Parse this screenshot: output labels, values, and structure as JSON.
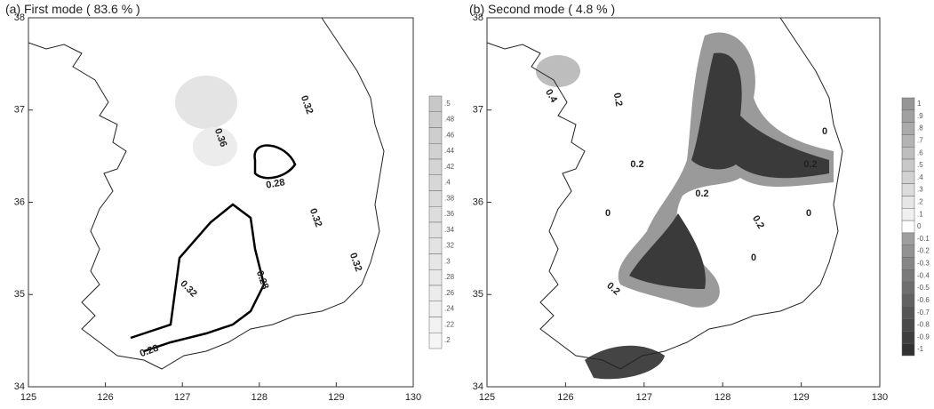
{
  "panels": [
    {
      "title": "(a) First mode ( 83.6 % )",
      "xticks": [
        125,
        126,
        127,
        128,
        129,
        130
      ],
      "yticks": [
        34,
        35,
        36,
        37,
        38
      ],
      "colorbar": [
        ".5",
        ".48",
        ".46",
        ".44",
        ".42",
        ".4",
        ".38",
        ".36",
        ".34",
        ".32",
        ".3",
        ".28",
        ".26",
        ".24",
        ".22",
        ".2"
      ],
      "contour_labels": [
        "0.32",
        "0.36",
        "0.28",
        "0.32",
        "0.28",
        "0.32",
        "0.28",
        "0.32"
      ]
    },
    {
      "title": "(b) Second mode ( 4.8 % )",
      "xticks": [
        125,
        126,
        127,
        128,
        129,
        130
      ],
      "yticks": [
        34,
        35,
        36,
        37,
        38
      ],
      "colorbar": [
        "1",
        ".9",
        ".8",
        ".7",
        ".6",
        ".5",
        ".4",
        ".3",
        ".2",
        ".1",
        "0",
        "-0.1",
        "-0.2",
        "-0.3",
        "-0.4",
        "-0.5",
        "-0.6",
        "-0.7",
        "-0.8",
        "-0.9",
        "-1"
      ],
      "contour_labels": [
        "0.4",
        "0.2",
        "0",
        "0.2",
        "0.2",
        "0",
        "0.2",
        "0.2",
        "0",
        "0",
        "0.2"
      ]
    }
  ]
}
